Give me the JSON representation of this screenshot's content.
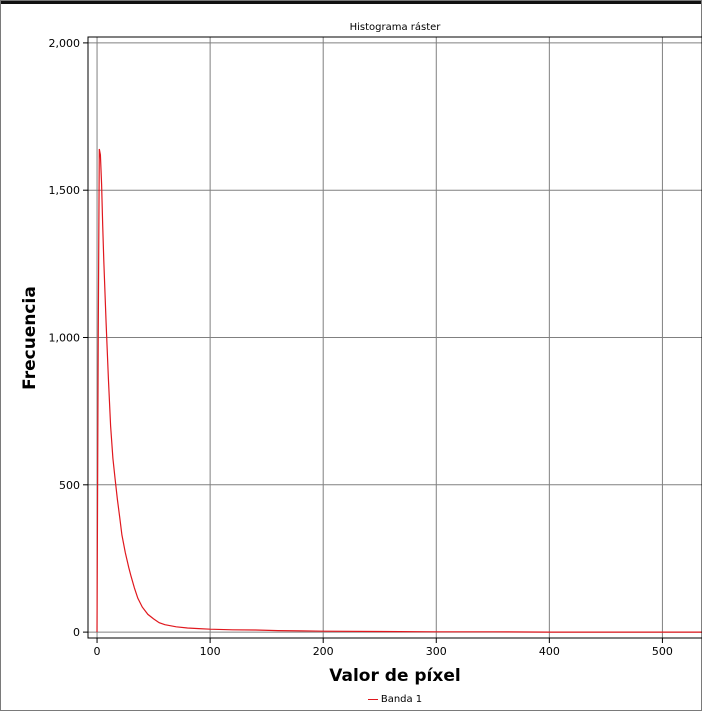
{
  "chart_data": {
    "type": "line",
    "title": "Histograma ráster",
    "xlabel": "Valor de píxel",
    "ylabel": "Frecuencia",
    "xlim": [
      -8,
      535
    ],
    "ylim": [
      -20,
      2020
    ],
    "x_ticks": [
      0,
      100,
      200,
      300,
      400,
      500
    ],
    "x_tick_labels": [
      "0",
      "100",
      "200",
      "300",
      "400",
      "500"
    ],
    "y_ticks": [
      0,
      500,
      1000,
      1500,
      2000
    ],
    "y_tick_labels": [
      "0",
      "500",
      "1,000",
      "1,500",
      "2,000"
    ],
    "grid": true,
    "legend_position": "bottom",
    "series": [
      {
        "name": "Banda 1",
        "color": "#e0181e",
        "x": [
          0,
          1,
          2,
          3,
          4,
          5,
          6,
          8,
          10,
          12,
          14,
          16,
          18,
          20,
          22,
          25,
          28,
          30,
          33,
          36,
          40,
          45,
          50,
          55,
          60,
          70,
          80,
          90,
          100,
          120,
          140,
          160,
          180,
          200,
          250,
          300,
          350,
          400,
          450,
          500,
          535
        ],
        "y": [
          0,
          980,
          1640,
          1620,
          1520,
          1380,
          1260,
          1050,
          860,
          700,
          590,
          520,
          450,
          390,
          330,
          270,
          220,
          190,
          150,
          115,
          85,
          60,
          45,
          32,
          25,
          18,
          14,
          12,
          10,
          8,
          7,
          5,
          4,
          3,
          2,
          1,
          1,
          0,
          0,
          0,
          0
        ]
      }
    ]
  }
}
